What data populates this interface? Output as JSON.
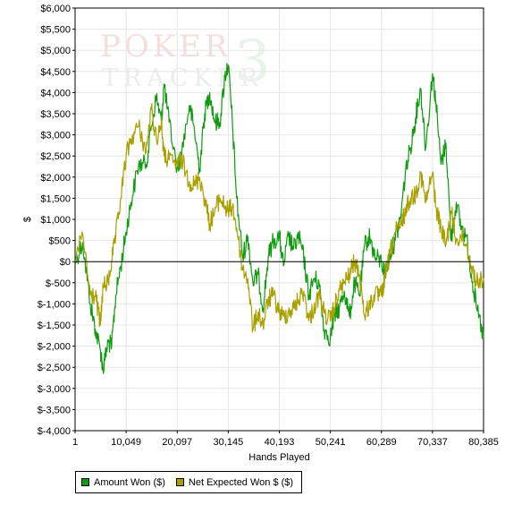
{
  "chart_data": {
    "type": "line",
    "title": "",
    "xlabel": "Hands Played",
    "ylabel": "$",
    "xlim": [
      1,
      80385
    ],
    "ylim": [
      -4000,
      6000
    ],
    "x_ticks": [
      1,
      10049,
      20097,
      30145,
      40193,
      50241,
      60289,
      70337,
      80385
    ],
    "x_tick_labels": [
      "1",
      "10,049",
      "20,097",
      "30,145",
      "40,193",
      "50,241",
      "60,289",
      "70,337",
      "80,385"
    ],
    "y_ticks": [
      6000,
      5500,
      5000,
      4500,
      4000,
      3500,
      3000,
      2500,
      2000,
      1500,
      1000,
      500,
      0,
      -500,
      -1000,
      -1500,
      -2000,
      -2500,
      -3000,
      -3500,
      -4000
    ],
    "y_tick_labels": [
      "$6,000",
      "$5,500",
      "$5,000",
      "$4,500",
      "$4,000",
      "$3,500",
      "$3,000",
      "$2,500",
      "$2,000",
      "$1,500",
      "$1,000",
      "$500",
      "$0",
      "$-500",
      "$-1,000",
      "$-1,500",
      "$-2,000",
      "$-2,500",
      "$-3,000",
      "$-3,500",
      "$-4,000"
    ],
    "grid": true,
    "legend_position": "bottom-left",
    "series": [
      {
        "name": "Amount Won ($)",
        "color": "#0f9a0f",
        "x": [
          1,
          1500,
          3000,
          4000,
          5000,
          5500,
          6500,
          7200,
          8000,
          9000,
          10049,
          11000,
          12500,
          14000,
          15000,
          16000,
          17000,
          17500,
          18500,
          20097,
          21000,
          22500,
          23500,
          24500,
          25500,
          26500,
          27500,
          28500,
          29500,
          30145,
          31000,
          31800,
          33000,
          34000,
          35000,
          36000,
          37000,
          38000,
          39000,
          40193,
          41000,
          42000,
          43000,
          44000,
          45000,
          46000,
          47000,
          48000,
          49000,
          50241,
          51000,
          52000,
          53000,
          54000,
          55000,
          56000,
          57000,
          58000,
          59000,
          60289,
          61000,
          62000,
          63000,
          64000,
          65000,
          66000,
          67000,
          68000,
          69000,
          70337,
          71000,
          72000,
          73000,
          74000,
          75000,
          76000,
          77000,
          78000,
          79000,
          80385
        ],
        "y": [
          0,
          450,
          -1000,
          -1600,
          -2100,
          -2550,
          -1900,
          -2000,
          -800,
          -100,
          700,
          1400,
          2300,
          2300,
          3200,
          3900,
          3300,
          4200,
          3300,
          2200,
          2600,
          3700,
          3100,
          2200,
          3500,
          4000,
          3300,
          3300,
          4400,
          4650,
          3200,
          1500,
          100,
          600,
          -500,
          -300,
          -1100,
          100,
          500,
          600,
          -100,
          600,
          300,
          600,
          100,
          -800,
          -400,
          -500,
          -1600,
          -1800,
          -1300,
          -1100,
          -700,
          -1300,
          -500,
          -800,
          400,
          600,
          100,
          0,
          -300,
          200,
          500,
          1000,
          2100,
          2700,
          3400,
          4100,
          2700,
          4450,
          3800,
          2300,
          2800,
          500,
          1400,
          800,
          600,
          -300,
          -1100,
          -1800
        ]
      },
      {
        "name": "Net Expected Won $ ($)",
        "color": "#a8a000",
        "x": [
          1,
          1500,
          3000,
          4000,
          5000,
          5500,
          6500,
          7200,
          8000,
          9000,
          10049,
          11000,
          12500,
          14000,
          15000,
          16000,
          17000,
          17500,
          18500,
          20097,
          21000,
          22500,
          23500,
          24500,
          25500,
          26500,
          27500,
          28500,
          29500,
          30145,
          31000,
          31800,
          33000,
          34000,
          35000,
          36000,
          37000,
          38000,
          39000,
          40193,
          41000,
          42000,
          43000,
          44000,
          45000,
          46000,
          47000,
          48000,
          49000,
          50241,
          51000,
          52000,
          53000,
          54000,
          55000,
          56000,
          57000,
          58000,
          59000,
          60289,
          61000,
          62000,
          63000,
          64000,
          65000,
          66000,
          67000,
          68000,
          69000,
          70337,
          71000,
          72000,
          73000,
          74000,
          75000,
          76000,
          77000,
          78000,
          79000,
          80385
        ],
        "y": [
          0,
          650,
          -800,
          -800,
          -1500,
          -600,
          -500,
          0,
          600,
          1500,
          2500,
          2900,
          3200,
          2600,
          3600,
          2900,
          3300,
          2500,
          2400,
          2300,
          2400,
          1900,
          1800,
          2000,
          1500,
          900,
          1200,
          1500,
          1300,
          1200,
          1300,
          800,
          -200,
          -400,
          -1600,
          -1200,
          -1500,
          -900,
          -800,
          -1200,
          -1300,
          -1200,
          -1100,
          -900,
          -700,
          -1400,
          -1100,
          -800,
          -1200,
          -1400,
          -1100,
          -700,
          -500,
          -300,
          0,
          -300,
          -1300,
          -1000,
          -800,
          -800,
          -400,
          200,
          700,
          800,
          1200,
          1500,
          1600,
          2100,
          1400,
          2100,
          1300,
          800,
          400,
          1200,
          500,
          600,
          400,
          -100,
          -500,
          -400
        ]
      }
    ]
  },
  "legend": {
    "items": [
      {
        "label": "Amount Won ($)",
        "color": "#0f9a0f"
      },
      {
        "label": "Net Expected Won $ ($)",
        "color": "#a8a000"
      }
    ]
  },
  "watermark": {
    "line1": "POKER",
    "line2": "TRACKER",
    "mark": "3"
  }
}
